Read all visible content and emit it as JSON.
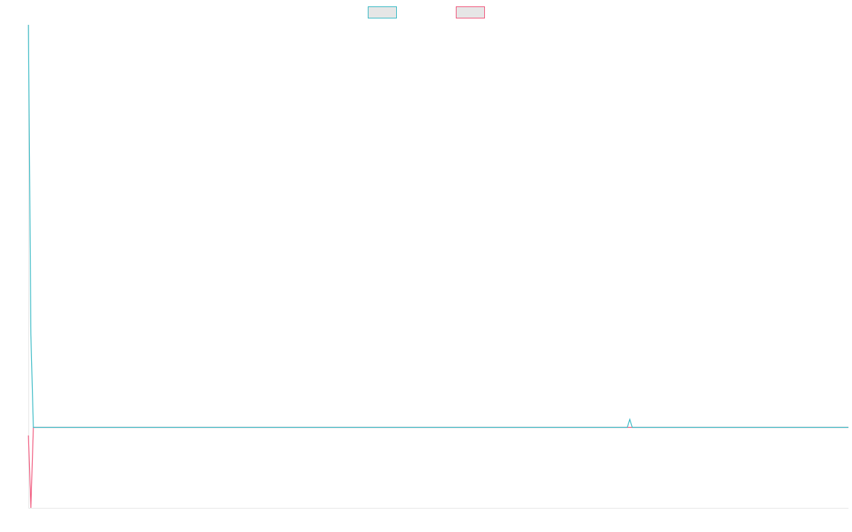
{
  "chart_data": {
    "type": "line",
    "x": [
      0,
      1,
      2,
      27,
      241,
      242,
      243,
      330
    ],
    "xlim": [
      0,
      330
    ],
    "ylim": [
      -20,
      100
    ],
    "legend": "top",
    "series": [
      {
        "color": "#36b9c4",
        "values": [
          100,
          23,
          0,
          0,
          0,
          2,
          0,
          0
        ]
      },
      {
        "color": "#f0557a",
        "values": [
          -2,
          -20,
          0,
          0,
          0,
          0,
          0,
          0
        ]
      }
    ]
  }
}
